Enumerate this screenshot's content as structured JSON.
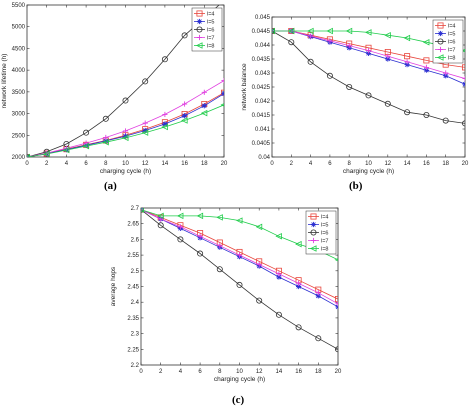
{
  "captions": {
    "a": "(a)",
    "b": "(b)",
    "c": "(c)"
  },
  "chart_data": [
    {
      "type": "line",
      "panel": "a",
      "xlabel": "charging cycle (h)",
      "ylabel": "network lifetime (h)",
      "xlim": [
        0,
        20
      ],
      "ylim": [
        2000,
        5500
      ],
      "x_ticks": [
        0,
        2,
        4,
        6,
        8,
        10,
        12,
        14,
        16,
        18,
        20
      ],
      "y_ticks": [
        2000,
        2500,
        3000,
        3500,
        4000,
        4500,
        5000,
        5500
      ],
      "legend_position": "top-right",
      "x": [
        0,
        2,
        4,
        6,
        8,
        10,
        12,
        14,
        16,
        18,
        20
      ],
      "series": [
        {
          "name": "l=4",
          "color": "#e8453c",
          "marker": "square",
          "values": [
            2000,
            2080,
            2180,
            2280,
            2380,
            2500,
            2640,
            2800,
            2990,
            3220,
            3480
          ]
        },
        {
          "name": "l=5",
          "color": "#2b2fd1",
          "marker": "star",
          "values": [
            2000,
            2075,
            2170,
            2270,
            2370,
            2480,
            2610,
            2760,
            2950,
            3180,
            3460
          ]
        },
        {
          "name": "l=6",
          "color": "#333333",
          "marker": "circle",
          "values": [
            2000,
            2120,
            2300,
            2560,
            2880,
            3300,
            3740,
            4250,
            4800,
            5200,
            5600
          ]
        },
        {
          "name": "l=7",
          "color": "#e040e0",
          "marker": "plus",
          "values": [
            2000,
            2090,
            2200,
            2320,
            2450,
            2600,
            2780,
            2980,
            3220,
            3490,
            3760
          ]
        },
        {
          "name": "l=8",
          "color": "#1fcc4a",
          "marker": "triangle-left",
          "values": [
            2000,
            2070,
            2160,
            2250,
            2340,
            2440,
            2560,
            2690,
            2840,
            3010,
            3200
          ]
        }
      ]
    },
    {
      "type": "line",
      "panel": "b",
      "xlabel": "charging cycle (h)",
      "ylabel": "network balance",
      "xlim": [
        0,
        20
      ],
      "ylim": [
        0.04,
        0.045
      ],
      "x_ticks": [
        0,
        2,
        4,
        6,
        8,
        10,
        12,
        14,
        16,
        18,
        20
      ],
      "x_tick_labels": [
        "0",
        "2",
        "4",
        "6",
        "8",
        "10",
        "12",
        "14",
        "16",
        "18",
        "20"
      ],
      "y_ticks": [
        0.04,
        0.0405,
        0.041,
        0.0415,
        0.042,
        0.0425,
        0.043,
        0.0435,
        0.044,
        0.0445,
        0.045
      ],
      "y_tick_labels": [
        "0.04",
        "0.0405",
        "0.041",
        "0.0415",
        "0.042",
        "0.0425",
        "0.043",
        "0.0435",
        "0.044",
        "0.0445",
        "0.045"
      ],
      "legend_position": "top-right",
      "x": [
        0,
        2,
        4,
        6,
        8,
        10,
        12,
        14,
        16,
        18,
        20
      ],
      "series": [
        {
          "name": "l=4",
          "color": "#e8453c",
          "marker": "square",
          "values": [
            0.0445,
            0.0445,
            0.04435,
            0.0442,
            0.04405,
            0.0439,
            0.04375,
            0.0436,
            0.04345,
            0.0433,
            0.0432
          ]
        },
        {
          "name": "l=5",
          "color": "#2b2fd1",
          "marker": "star",
          "values": [
            0.0445,
            0.0445,
            0.0443,
            0.0441,
            0.0439,
            0.0437,
            0.0435,
            0.0433,
            0.0431,
            0.0429,
            0.0426
          ]
        },
        {
          "name": "l=6",
          "color": "#333333",
          "marker": "circle",
          "values": [
            0.0445,
            0.0441,
            0.0434,
            0.0429,
            0.0425,
            0.0422,
            0.0419,
            0.0416,
            0.0415,
            0.0413,
            0.0412
          ]
        },
        {
          "name": "l=7",
          "color": "#e040e0",
          "marker": "plus",
          "values": [
            0.0445,
            0.0445,
            0.04432,
            0.04415,
            0.04398,
            0.0438,
            0.0436,
            0.0434,
            0.0432,
            0.043,
            0.0428
          ]
        },
        {
          "name": "l=8",
          "color": "#1fcc4a",
          "marker": "triangle-left",
          "values": [
            0.0445,
            0.0445,
            0.0445,
            0.0445,
            0.0445,
            0.04445,
            0.04435,
            0.04425,
            0.0441,
            0.04395,
            0.0438
          ]
        }
      ]
    },
    {
      "type": "line",
      "panel": "c",
      "xlabel": "charging cycle (h)",
      "ylabel": "average hops",
      "xlim": [
        0,
        20
      ],
      "ylim": [
        2.2,
        2.7
      ],
      "x_ticks": [
        0,
        2,
        4,
        6,
        8,
        10,
        12,
        14,
        16,
        18,
        20
      ],
      "y_ticks": [
        2.2,
        2.25,
        2.3,
        2.35,
        2.4,
        2.45,
        2.5,
        2.55,
        2.6,
        2.65,
        2.7
      ],
      "y_tick_labels": [
        "2.2",
        "2.25",
        "2.3",
        "2.35",
        "2.4",
        "2.45",
        "2.5",
        "2.55",
        "2.6",
        "2.65",
        "2.7"
      ],
      "legend_position": "top-right",
      "x": [
        0,
        2,
        4,
        6,
        8,
        10,
        12,
        14,
        16,
        18,
        20
      ],
      "series": [
        {
          "name": "l=4",
          "color": "#e8453c",
          "marker": "square",
          "values": [
            2.695,
            2.67,
            2.645,
            2.62,
            2.59,
            2.56,
            2.53,
            2.5,
            2.47,
            2.44,
            2.41
          ]
        },
        {
          "name": "l=5",
          "color": "#2b2fd1",
          "marker": "star",
          "values": [
            2.695,
            2.665,
            2.635,
            2.605,
            2.575,
            2.545,
            2.515,
            2.48,
            2.45,
            2.42,
            2.385
          ]
        },
        {
          "name": "l=6",
          "color": "#333333",
          "marker": "circle",
          "values": [
            2.695,
            2.645,
            2.6,
            2.555,
            2.505,
            2.455,
            2.405,
            2.36,
            2.32,
            2.285,
            2.25
          ]
        },
        {
          "name": "l=7",
          "color": "#e040e0",
          "marker": "plus",
          "values": [
            2.695,
            2.665,
            2.64,
            2.61,
            2.58,
            2.55,
            2.52,
            2.49,
            2.46,
            2.43,
            2.395
          ]
        },
        {
          "name": "l=8",
          "color": "#1fcc4a",
          "marker": "triangle-left",
          "values": [
            2.695,
            2.675,
            2.675,
            2.675,
            2.67,
            2.66,
            2.64,
            2.61,
            2.585,
            2.565,
            2.535
          ]
        }
      ]
    }
  ]
}
